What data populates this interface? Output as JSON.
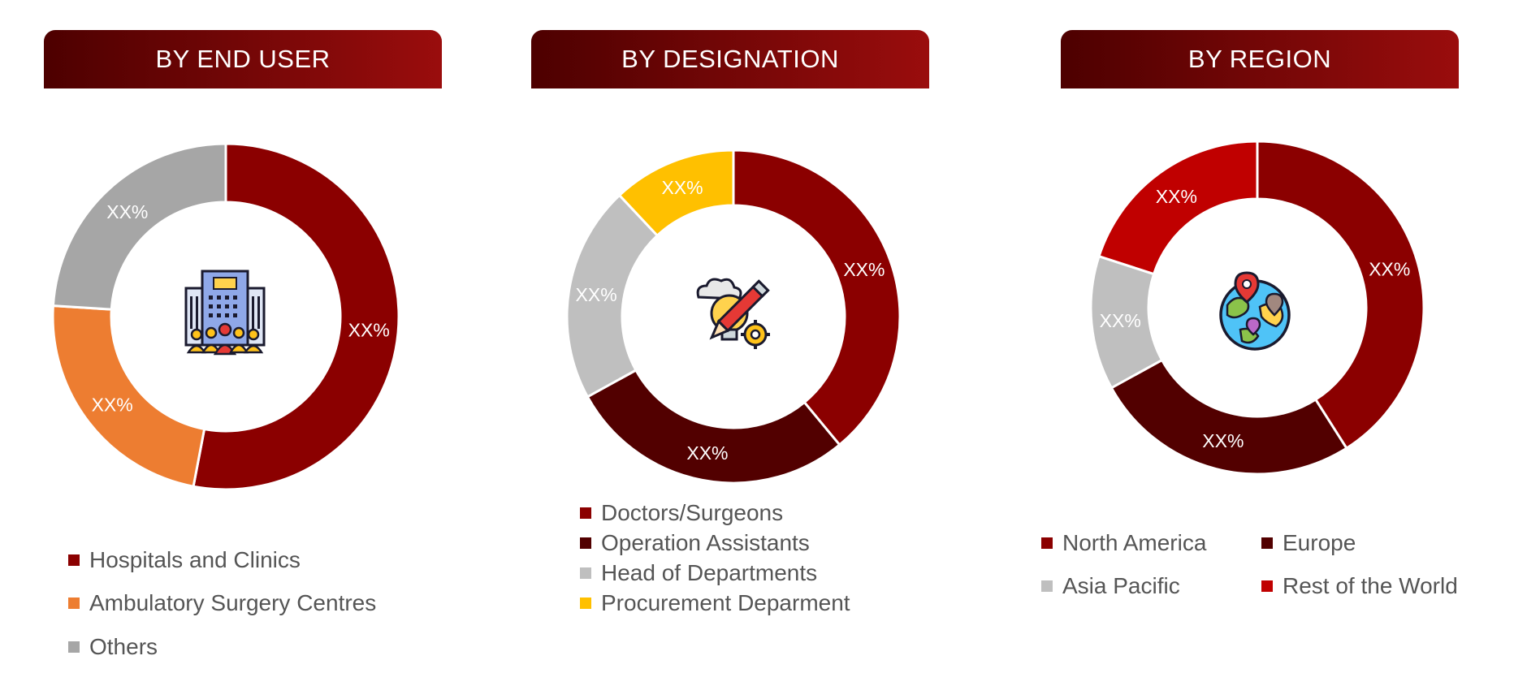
{
  "chart_data": [
    {
      "type": "pie",
      "title": "BY END USER",
      "categories": [
        "Hospitals and Clinics",
        "Ambulatory Surgery Centres",
        "Others"
      ],
      "values": [
        53,
        23,
        24
      ],
      "labels": [
        "XX%",
        "XX%",
        "XX%"
      ],
      "colors": [
        "#8b0000",
        "#ed7d31",
        "#a6a6a6"
      ],
      "center_icon": "hospital-building-people-icon",
      "legend_position": "bottom"
    },
    {
      "type": "pie",
      "title": "BY DESIGNATION",
      "categories": [
        "Doctors/Surgeons",
        "Operation Assistants",
        "Head of Departments",
        "Procurement Deparment"
      ],
      "values": [
        39,
        28,
        21,
        12
      ],
      "labels": [
        "XX%",
        "XX%",
        "XX%",
        "XX%"
      ],
      "colors": [
        "#8b0000",
        "#520000",
        "#bfbfbf",
        "#ffc000"
      ],
      "center_icon": "idea-bulb-pencil-gear-icon",
      "legend_position": "bottom"
    },
    {
      "type": "pie",
      "title": "BY REGION",
      "categories": [
        "North America",
        "Europe",
        "Asia Pacific",
        "Rest of the World"
      ],
      "values": [
        41,
        26,
        13,
        20
      ],
      "labels": [
        "XX%",
        "XX%",
        "XX%",
        "XX%"
      ],
      "colors": [
        "#8b0000",
        "#520000",
        "#bfbfbf",
        "#c00000"
      ],
      "center_icon": "globe-location-pins-icon",
      "legend_position": "bottom"
    }
  ]
}
